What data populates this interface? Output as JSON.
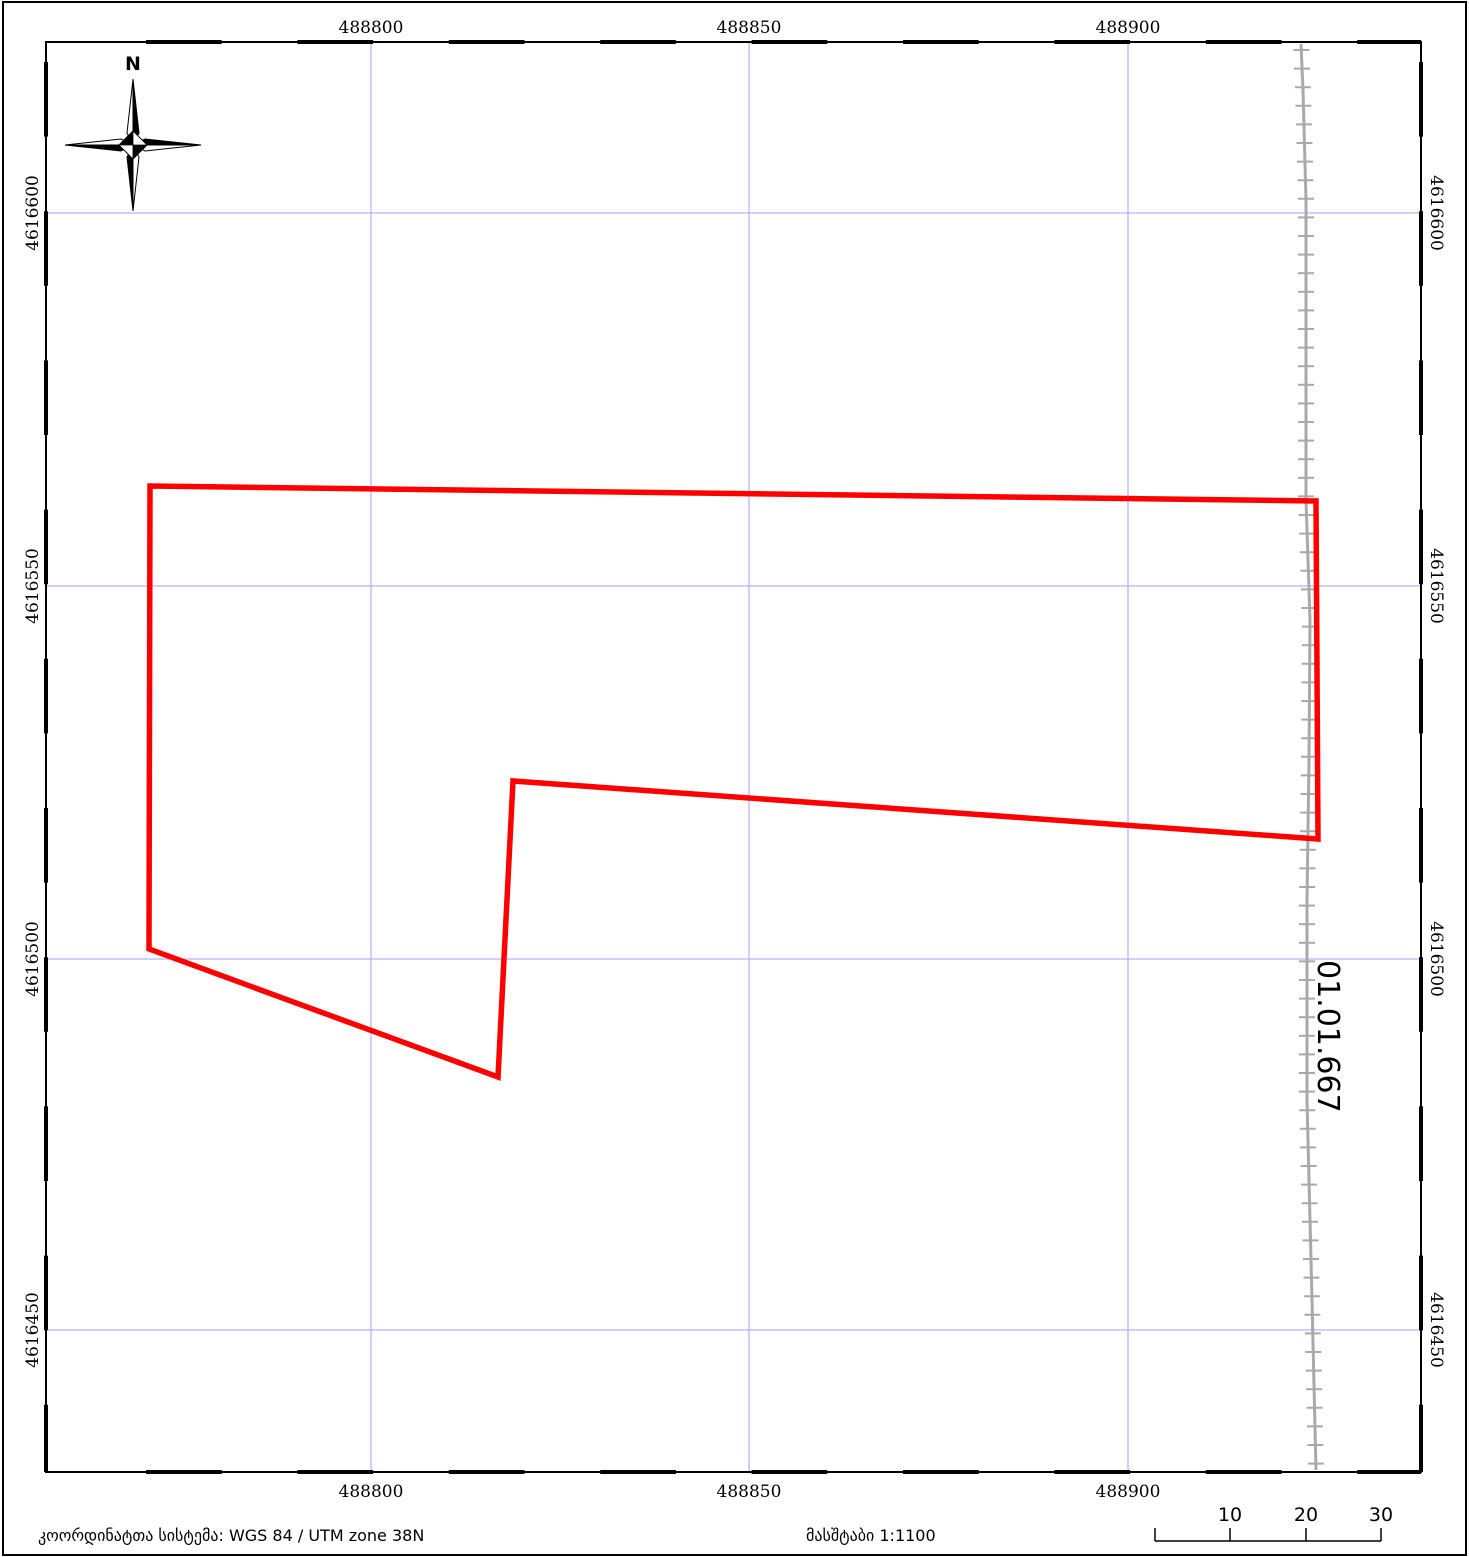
{
  "map": {
    "grid": {
      "x_ticks": [
        "488800",
        "488850",
        "488900"
      ],
      "y_ticks": [
        "4616600",
        "4616550",
        "4616500",
        "4616450"
      ]
    },
    "parcel_label": "01.01.667",
    "north_label": "N",
    "footer": {
      "crs": "კოორდინატთა სისტემა: WGS 84 / UTM zone 38N",
      "scale": "მასშტაბი 1:1100"
    },
    "scalebar": {
      "labels": [
        "10",
        "20",
        "30"
      ]
    },
    "colors": {
      "parcel_outline": "#ff0000",
      "grid_lines": "#b4b4ff",
      "railway": "#a9a9a9",
      "frame": "#000000"
    },
    "icons": [
      "north-arrow-icon"
    ]
  }
}
